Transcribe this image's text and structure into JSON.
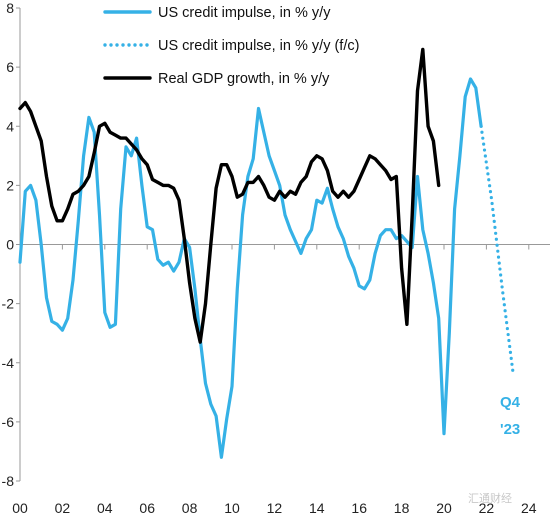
{
  "chart_data": {
    "type": "line",
    "title": "",
    "xlabel": "",
    "ylabel": "",
    "xlim": [
      2000,
      2025
    ],
    "ylim": [
      -8,
      8
    ],
    "x_ticks": [
      2000,
      2002,
      2004,
      2006,
      2008,
      2010,
      2012,
      2014,
      2016,
      2018,
      2020,
      2022,
      2024
    ],
    "x_tick_labels": [
      "00",
      "02",
      "04",
      "06",
      "08",
      "10",
      "12",
      "14",
      "16",
      "18",
      "20",
      "22",
      "24"
    ],
    "y_ticks": [
      -8,
      -6,
      -4,
      -2,
      0,
      2,
      4,
      6,
      8
    ],
    "y_tick_labels": [
      "-8",
      "-6",
      "-4",
      "-2",
      "0",
      "2",
      "4",
      "6",
      "8"
    ],
    "legend_position": "top",
    "grid": false,
    "series": [
      {
        "name": "US credit impulse, in % y/y",
        "color": "#35b1e6",
        "style": "solid",
        "points": [
          [
            2000.0,
            -0.6
          ],
          [
            2000.25,
            1.8
          ],
          [
            2000.5,
            2.0
          ],
          [
            2000.75,
            1.5
          ],
          [
            2001.0,
            0.0
          ],
          [
            2001.25,
            -1.8
          ],
          [
            2001.5,
            -2.6
          ],
          [
            2001.75,
            -2.7
          ],
          [
            2002.0,
            -2.9
          ],
          [
            2002.25,
            -2.5
          ],
          [
            2002.5,
            -1.2
          ],
          [
            2002.75,
            0.8
          ],
          [
            2003.0,
            3.0
          ],
          [
            2003.25,
            4.3
          ],
          [
            2003.5,
            3.8
          ],
          [
            2003.75,
            1.0
          ],
          [
            2004.0,
            -2.3
          ],
          [
            2004.25,
            -2.8
          ],
          [
            2004.5,
            -2.7
          ],
          [
            2004.75,
            1.2
          ],
          [
            2005.0,
            3.3
          ],
          [
            2005.25,
            3.0
          ],
          [
            2005.5,
            3.6
          ],
          [
            2005.75,
            2.0
          ],
          [
            2006.0,
            0.6
          ],
          [
            2006.25,
            0.5
          ],
          [
            2006.5,
            -0.5
          ],
          [
            2006.75,
            -0.7
          ],
          [
            2007.0,
            -0.6
          ],
          [
            2007.25,
            -0.9
          ],
          [
            2007.5,
            -0.6
          ],
          [
            2007.75,
            0.2
          ],
          [
            2008.0,
            -0.1
          ],
          [
            2008.25,
            -1.5
          ],
          [
            2008.5,
            -3.2
          ],
          [
            2008.75,
            -4.7
          ],
          [
            2009.0,
            -5.4
          ],
          [
            2009.25,
            -5.8
          ],
          [
            2009.5,
            -7.2
          ],
          [
            2009.75,
            -5.9
          ],
          [
            2010.0,
            -4.8
          ],
          [
            2010.25,
            -1.5
          ],
          [
            2010.5,
            1.0
          ],
          [
            2010.75,
            2.3
          ],
          [
            2011.0,
            2.9
          ],
          [
            2011.25,
            4.6
          ],
          [
            2011.5,
            3.8
          ],
          [
            2011.75,
            3.0
          ],
          [
            2012.0,
            2.5
          ],
          [
            2012.25,
            2.0
          ],
          [
            2012.5,
            1.0
          ],
          [
            2012.75,
            0.5
          ],
          [
            2013.0,
            0.1
          ],
          [
            2013.25,
            -0.3
          ],
          [
            2013.5,
            0.2
          ],
          [
            2013.75,
            0.5
          ],
          [
            2014.0,
            1.5
          ],
          [
            2014.25,
            1.4
          ],
          [
            2014.5,
            1.9
          ],
          [
            2014.75,
            1.2
          ],
          [
            2015.0,
            0.6
          ],
          [
            2015.25,
            0.2
          ],
          [
            2015.5,
            -0.4
          ],
          [
            2015.75,
            -0.8
          ],
          [
            2016.0,
            -1.4
          ],
          [
            2016.25,
            -1.5
          ],
          [
            2016.5,
            -1.2
          ],
          [
            2016.75,
            -0.3
          ],
          [
            2017.0,
            0.3
          ],
          [
            2017.25,
            0.5
          ],
          [
            2017.5,
            0.5
          ],
          [
            2017.75,
            0.2
          ],
          [
            2018.0,
            0.3
          ],
          [
            2018.25,
            0.1
          ],
          [
            2018.5,
            -0.1
          ],
          [
            2018.75,
            2.3
          ],
          [
            2019.0,
            0.5
          ],
          [
            2019.25,
            -0.3
          ],
          [
            2019.5,
            -1.3
          ],
          [
            2019.75,
            -2.5
          ],
          [
            2020.0,
            -6.4
          ],
          [
            2020.25,
            -3.0
          ],
          [
            2020.5,
            1.2
          ],
          [
            2020.75,
            3.0
          ],
          [
            2021.0,
            5.0
          ],
          [
            2021.25,
            5.6
          ],
          [
            2021.5,
            5.3
          ],
          [
            2021.75,
            4.0
          ]
        ]
      },
      {
        "name": "US credit impulse, in % y/y (f/c)",
        "color": "#35b1e6",
        "style": "dotted",
        "points": [
          [
            2021.75,
            4.0
          ],
          [
            2022.25,
            1.5
          ],
          [
            2022.75,
            -1.5
          ],
          [
            2023.25,
            -4.3
          ]
        ]
      },
      {
        "name": "Real GDP growth, in % y/y",
        "color": "#000000",
        "style": "solid",
        "points": [
          [
            2000.0,
            4.6
          ],
          [
            2000.25,
            4.8
          ],
          [
            2000.5,
            4.5
          ],
          [
            2000.75,
            4.0
          ],
          [
            2001.0,
            3.5
          ],
          [
            2001.25,
            2.3
          ],
          [
            2001.5,
            1.3
          ],
          [
            2001.75,
            0.8
          ],
          [
            2002.0,
            0.8
          ],
          [
            2002.25,
            1.2
          ],
          [
            2002.5,
            1.7
          ],
          [
            2002.75,
            1.8
          ],
          [
            2003.0,
            2.0
          ],
          [
            2003.25,
            2.3
          ],
          [
            2003.5,
            3.1
          ],
          [
            2003.75,
            4.0
          ],
          [
            2004.0,
            4.1
          ],
          [
            2004.25,
            3.8
          ],
          [
            2004.5,
            3.7
          ],
          [
            2004.75,
            3.6
          ],
          [
            2005.0,
            3.6
          ],
          [
            2005.25,
            3.4
          ],
          [
            2005.5,
            3.2
          ],
          [
            2005.75,
            2.9
          ],
          [
            2006.0,
            2.7
          ],
          [
            2006.25,
            2.2
          ],
          [
            2006.5,
            2.1
          ],
          [
            2006.75,
            2.0
          ],
          [
            2007.0,
            2.0
          ],
          [
            2007.25,
            1.9
          ],
          [
            2007.5,
            1.5
          ],
          [
            2007.75,
            0.2
          ],
          [
            2008.0,
            -1.3
          ],
          [
            2008.25,
            -2.5
          ],
          [
            2008.5,
            -3.3
          ],
          [
            2008.75,
            -2.0
          ],
          [
            2009.0,
            0.0
          ],
          [
            2009.25,
            1.9
          ],
          [
            2009.5,
            2.7
          ],
          [
            2009.75,
            2.7
          ],
          [
            2010.0,
            2.3
          ],
          [
            2010.25,
            1.6
          ],
          [
            2010.5,
            1.7
          ],
          [
            2010.75,
            2.1
          ],
          [
            2011.0,
            2.1
          ],
          [
            2011.25,
            2.3
          ],
          [
            2011.5,
            2.0
          ],
          [
            2011.75,
            1.6
          ],
          [
            2012.0,
            1.5
          ],
          [
            2012.25,
            1.8
          ],
          [
            2012.5,
            1.6
          ],
          [
            2012.75,
            1.8
          ],
          [
            2013.0,
            1.7
          ],
          [
            2013.25,
            2.1
          ],
          [
            2013.5,
            2.3
          ],
          [
            2013.75,
            2.8
          ],
          [
            2014.0,
            3.0
          ],
          [
            2014.25,
            2.9
          ],
          [
            2014.5,
            2.5
          ],
          [
            2014.75,
            1.8
          ],
          [
            2015.0,
            1.6
          ],
          [
            2015.25,
            1.8
          ],
          [
            2015.5,
            1.6
          ],
          [
            2015.75,
            1.8
          ],
          [
            2016.0,
            2.2
          ],
          [
            2016.25,
            2.6
          ],
          [
            2016.5,
            3.0
          ],
          [
            2016.75,
            2.9
          ],
          [
            2017.0,
            2.7
          ],
          [
            2017.25,
            2.5
          ],
          [
            2017.5,
            2.2
          ],
          [
            2017.75,
            2.3
          ],
          [
            2018.0,
            -0.8
          ],
          [
            2018.25,
            -2.7
          ],
          [
            2018.5,
            1.0
          ],
          [
            2018.75,
            5.2
          ],
          [
            2019.0,
            6.6
          ],
          [
            2019.25,
            4.0
          ],
          [
            2019.5,
            3.5
          ],
          [
            2019.75,
            2.0
          ]
        ]
      }
    ]
  },
  "annotation": {
    "line1": "Q4",
    "line2": "'23"
  },
  "watermark": "汇通财经"
}
